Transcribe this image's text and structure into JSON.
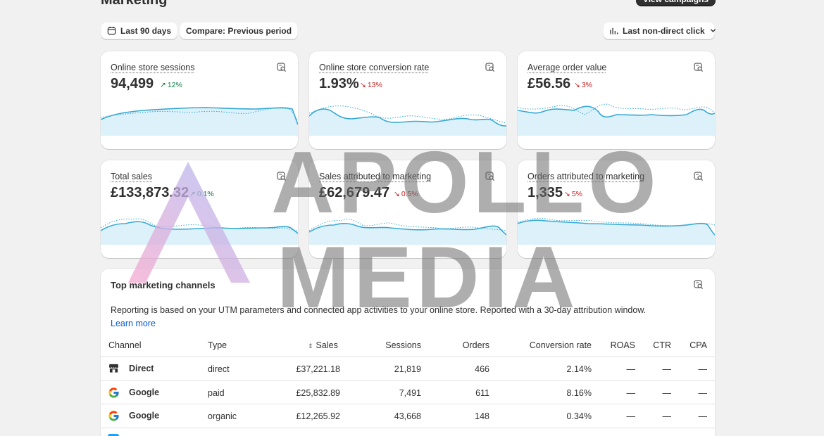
{
  "header": {
    "title": "Marketing",
    "action_label": "View campaigns"
  },
  "toolbar": {
    "date_range": "Last 90 days",
    "compare": "Compare: Previous period",
    "attribution": "Last non-direct click"
  },
  "metrics": [
    {
      "label": "Online store sessions",
      "value": "94,499",
      "delta": "12%",
      "direction": "up"
    },
    {
      "label": "Online store conversion rate",
      "value": "1.93%",
      "delta": "13%",
      "direction": "down"
    },
    {
      "label": "Average order value",
      "value": "£56.56",
      "delta": "3%",
      "direction": "down"
    },
    {
      "label": "Total sales",
      "value": "£133,873.32",
      "delta": "0.1%",
      "direction": "up"
    },
    {
      "label": "Sales attributed to marketing",
      "value": "£62,679.47",
      "delta": "0.5%",
      "direction": "down"
    },
    {
      "label": "Orders attributed to marketing",
      "value": "1,335",
      "delta": "5%",
      "direction": "down"
    }
  ],
  "channels": {
    "title": "Top marketing channels",
    "description": "Reporting is based on your UTM parameters and connected app activities to your online store. Reported with a 30-day attribution window.",
    "learn_more": "Learn more",
    "columns": [
      "Channel",
      "Type",
      "Sales",
      "Sessions",
      "Orders",
      "Conversion rate",
      "ROAS",
      "CTR",
      "CPA"
    ],
    "rows": [
      {
        "icon": "store-icon",
        "channel": "Direct",
        "type": "direct",
        "sales": "£37,221.18",
        "sessions": "21,819",
        "orders": "466",
        "conversion": "2.14%",
        "roas": "—",
        "ctr": "—",
        "cpa": "—"
      },
      {
        "icon": "google-icon",
        "channel": "Google",
        "type": "paid",
        "sales": "£25,832.89",
        "sessions": "7,491",
        "orders": "611",
        "conversion": "8.16%",
        "roas": "—",
        "ctr": "—",
        "cpa": "—"
      },
      {
        "icon": "google-icon",
        "channel": "Google",
        "type": "organic",
        "sales": "£12,265.92",
        "sessions": "43,668",
        "orders": "148",
        "conversion": "0.34%",
        "roas": "—",
        "ctr": "—",
        "cpa": "—"
      }
    ]
  },
  "watermark": {
    "line1": "APOLLO",
    "line2": "MEDIA"
  },
  "colors": {
    "spark_line": "#38a9d4",
    "spark_fill": "#d8f0fa",
    "delta_up": "#0c7a43",
    "delta_down": "#c21c1c",
    "link": "#005bd3"
  }
}
